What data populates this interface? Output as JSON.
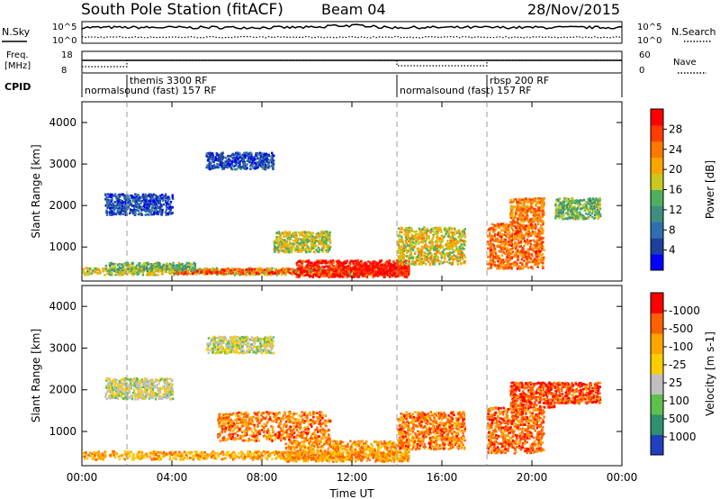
{
  "header": {
    "station": "South Pole Station (fitACF)",
    "beam": "Beam 04",
    "date": "28/Nov/2015"
  },
  "panels": {
    "nsky_label": "N.Sky",
    "nsearch_label": "N.Search",
    "noise_ticks": [
      "10^5",
      "10^0"
    ],
    "freq_label_1": "Freq.",
    "freq_label_2": "[MHz]",
    "freq_ticks": [
      "18",
      "8"
    ],
    "nave_label": "Nave",
    "nave_ticks": [
      "60",
      "0"
    ],
    "cpid_label": "CPID",
    "cpid_segments": [
      {
        "name": "normalsound (fast) 157 RF",
        "start": 0,
        "end": 14
      },
      {
        "name": "themis 3300 RF",
        "start": 2,
        "end": 14
      },
      {
        "name": "normalsound (fast) 157 RF",
        "start": 14,
        "end": 24
      },
      {
        "name": "rbsp 200 RF",
        "start": 18,
        "end": 24
      }
    ]
  },
  "chart_data": [
    {
      "type": "heatmap",
      "title": "Power",
      "ylabel": "Slant Range [km]",
      "ylim": [
        180,
        4500
      ],
      "y_ticks": [
        1000,
        2000,
        3000,
        4000
      ],
      "colorbar": {
        "label": "Power [dB]",
        "ticks": [
          "4",
          "8",
          "12",
          "16",
          "20",
          "24",
          "28"
        ],
        "colors": [
          "#0000ff",
          "#1f3f9f",
          "#2f6fb0",
          "#3f8f7f",
          "#4faf5f",
          "#c8c820",
          "#ffa500",
          "#ff7800",
          "#ff3c00",
          "#ff0000"
        ]
      },
      "regions": [
        {
          "t0": 0.0,
          "t1": 14.5,
          "r0": 350,
          "r1": 520,
          "level": 0.55
        },
        {
          "t0": 4.0,
          "t1": 9.5,
          "r0": 380,
          "r1": 500,
          "level": 0.85
        },
        {
          "t0": 9.5,
          "t1": 14.5,
          "r0": 300,
          "r1": 700,
          "level": 0.95
        },
        {
          "t0": 12.0,
          "t1": 14.5,
          "r0": 350,
          "r1": 600,
          "level": 1.0
        },
        {
          "t0": 1.0,
          "t1": 4.0,
          "r0": 1800,
          "r1": 2300,
          "level": 0.15
        },
        {
          "t0": 5.5,
          "t1": 8.5,
          "r0": 2900,
          "r1": 3300,
          "level": 0.15
        },
        {
          "t0": 8.5,
          "t1": 11.0,
          "r0": 900,
          "r1": 1400,
          "level": 0.55
        },
        {
          "t0": 14.0,
          "t1": 17.0,
          "r0": 600,
          "r1": 1500,
          "level": 0.6
        },
        {
          "t0": 18.0,
          "t1": 20.5,
          "r0": 500,
          "r1": 1600,
          "level": 0.8
        },
        {
          "t0": 19.0,
          "t1": 20.5,
          "r0": 1600,
          "r1": 2200,
          "level": 0.75
        },
        {
          "t0": 21.0,
          "t1": 23.0,
          "r0": 1700,
          "r1": 2200,
          "level": 0.45
        },
        {
          "t0": 1.0,
          "t1": 5.0,
          "r0": 450,
          "r1": 650,
          "level": 0.45
        }
      ]
    },
    {
      "type": "heatmap",
      "title": "Velocity",
      "xlabel": "Time UT",
      "ylabel": "Slant Range [km]",
      "ylim": [
        180,
        4500
      ],
      "y_ticks": [
        1000,
        2000,
        3000,
        4000
      ],
      "x_ticks": [
        "00:00",
        "04:00",
        "08:00",
        "12:00",
        "16:00",
        "20:00",
        "00:00"
      ],
      "colorbar": {
        "label": "Velocity [m s-1]",
        "ticks": [
          "1000",
          "500",
          "100",
          "25",
          "-25",
          "-100",
          "-500",
          "-1000"
        ],
        "colors": [
          "#1f3fbf",
          "#2f8f6f",
          "#5fbf4f",
          "#c0c0c0",
          "#ffcc00",
          "#ffa500",
          "#ff6000",
          "#ff0000"
        ]
      },
      "regions": [
        {
          "t0": 0.0,
          "t1": 14.5,
          "r0": 350,
          "r1": 550,
          "level": 0.7
        },
        {
          "t0": 9.0,
          "t1": 14.5,
          "r0": 300,
          "r1": 800,
          "level": 0.75
        },
        {
          "t0": 1.0,
          "t1": 4.0,
          "r0": 1800,
          "r1": 2300,
          "level": 0.45
        },
        {
          "t0": 5.5,
          "t1": 8.5,
          "r0": 2900,
          "r1": 3300,
          "level": 0.45
        },
        {
          "t0": 6.0,
          "t1": 11.0,
          "r0": 800,
          "r1": 1500,
          "level": 0.8
        },
        {
          "t0": 14.0,
          "t1": 17.0,
          "r0": 600,
          "r1": 1500,
          "level": 0.8
        },
        {
          "t0": 18.0,
          "t1": 20.5,
          "r0": 500,
          "r1": 1600,
          "level": 0.85
        },
        {
          "t0": 19.0,
          "t1": 21.0,
          "r0": 1600,
          "r1": 2200,
          "level": 0.9
        },
        {
          "t0": 21.0,
          "t1": 23.0,
          "r0": 1700,
          "r1": 2200,
          "level": 0.9
        }
      ]
    }
  ],
  "time_ticks_hours": [
    0,
    4,
    8,
    12,
    16,
    20,
    24
  ],
  "cpid_change_hours": [
    2,
    14,
    18
  ]
}
